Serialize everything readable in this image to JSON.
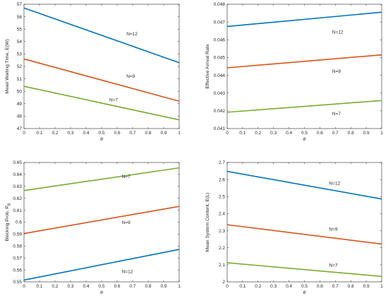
{
  "colors": {
    "N=12": "#0072BD",
    "N=9": "#D95319",
    "N=7": "#77AC30"
  },
  "chart_data": [
    {
      "type": "line",
      "xlabel": "θ",
      "ylabel": "Mean Waiting Time, E(W)",
      "xlim": [
        0,
        1
      ],
      "ylim": [
        47,
        57
      ],
      "xticks": [
        "0",
        "0.1",
        "0.2",
        "0.3",
        "0.4",
        "0.5",
        "0.6",
        "0.7",
        "0.8",
        "0.9",
        "1"
      ],
      "yticks": [
        "47",
        "48",
        "49",
        "50",
        "51",
        "52",
        "53",
        "54",
        "55",
        "56",
        "57"
      ],
      "series": [
        {
          "name": "N=12",
          "x": [
            0,
            1
          ],
          "values": [
            56.7,
            52.3
          ]
        },
        {
          "name": "N=9",
          "x": [
            0,
            1
          ],
          "values": [
            52.6,
            49.2
          ]
        },
        {
          "name": "N=7",
          "x": [
            0,
            1
          ],
          "values": [
            50.4,
            47.7
          ]
        }
      ]
    },
    {
      "type": "line",
      "xlabel": "θ",
      "ylabel": "Effective Arrival Rate",
      "xlim": [
        0,
        1
      ],
      "ylim": [
        0.041,
        0.048
      ],
      "xticks": [
        "0",
        "0.1",
        "0.2",
        "0.3",
        "0.4",
        "0.5",
        "0.6",
        "0.7",
        "0.8",
        "0.9",
        "1"
      ],
      "yticks": [
        "0.041",
        "0.042",
        "0.043",
        "0.044",
        "0.045",
        "0.046",
        "0.047",
        "0.048"
      ],
      "series": [
        {
          "name": "N=12",
          "x": [
            0,
            1
          ],
          "values": [
            0.04675,
            0.04755
          ]
        },
        {
          "name": "N=9",
          "x": [
            0,
            1
          ],
          "values": [
            0.04442,
            0.04515
          ]
        },
        {
          "name": "N=7",
          "x": [
            0,
            1
          ],
          "values": [
            0.04192,
            0.04258
          ]
        }
      ]
    },
    {
      "type": "line",
      "xlabel": "θ",
      "ylabel": "Blocking Prob. P",
      "ylabel_sub": "B",
      "xlim": [
        0,
        1
      ],
      "ylim": [
        0.55,
        0.65
      ],
      "xticks": [
        "0",
        "0.1",
        "0.2",
        "0.3",
        "0.4",
        "0.5",
        "0.6",
        "0.7",
        "0.8",
        "0.9",
        "1"
      ],
      "yticks": [
        "0.55",
        "0.56",
        "0.57",
        "0.58",
        "0.59",
        "0.6",
        "0.61",
        "0.62",
        "0.63",
        "0.64",
        "0.65"
      ],
      "series": [
        {
          "name": "N=7",
          "x": [
            0,
            1
          ],
          "values": [
            0.6265,
            0.6455
          ]
        },
        {
          "name": "N=9",
          "x": [
            0,
            1
          ],
          "values": [
            0.5905,
            0.6132
          ]
        },
        {
          "name": "N=12",
          "x": [
            0,
            1
          ],
          "values": [
            0.5515,
            0.5772
          ]
        }
      ]
    },
    {
      "type": "line",
      "xlabel": "θ",
      "ylabel": "Mean System Content, E(L)",
      "xlim": [
        0,
        1
      ],
      "ylim": [
        2,
        2.7
      ],
      "xticks": [
        "0",
        "0.1",
        "0.2",
        "0.3",
        "0.4",
        "0.5",
        "0.6",
        "0.7",
        "0.8",
        "0.9",
        "1"
      ],
      "yticks": [
        "2",
        "2.1",
        "2.2",
        "2.3",
        "2.4",
        "2.5",
        "2.6",
        "2.7"
      ],
      "series": [
        {
          "name": "N=12",
          "x": [
            0,
            1
          ],
          "values": [
            2.648,
            2.486
          ]
        },
        {
          "name": "N=9",
          "x": [
            0,
            1
          ],
          "values": [
            2.335,
            2.222
          ]
        },
        {
          "name": "N=7",
          "x": [
            0,
            1
          ],
          "values": [
            2.112,
            2.032
          ]
        }
      ]
    }
  ]
}
